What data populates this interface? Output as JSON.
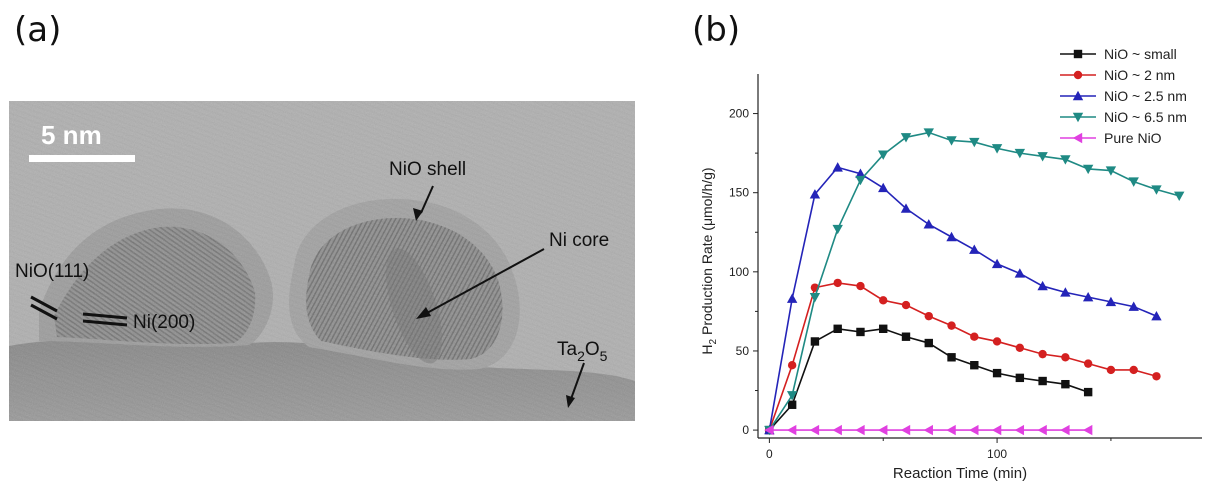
{
  "panel_a": {
    "label": "(a)",
    "scale_bar": "5 nm",
    "annotations": {
      "nio_shell": "NiO shell",
      "ni_core": "Ni core",
      "nio_111": "NiO(111)",
      "ni_200": "Ni(200)",
      "ta2o5_base": "Ta",
      "ta2o5_sub1": "2",
      "ta2o5_mid": "O",
      "ta2o5_sub2": "5"
    }
  },
  "panel_b": {
    "label": "(b)"
  },
  "chart_data": {
    "type": "line",
    "xlabel": "Reaction Time (min)",
    "ylabel_prefix": "H",
    "ylabel_sub": "2",
    "ylabel_rest": " Production Rate (μmol/h/g)",
    "xlim": [
      -5,
      190
    ],
    "ylim": [
      -5,
      225
    ],
    "xticks": [
      0,
      100
    ],
    "yticks": [
      0,
      50,
      100,
      150,
      200
    ],
    "legend_position": "top-right",
    "series": [
      {
        "name": "NiO ~ small",
        "color": "#111111",
        "marker": "square",
        "x": [
          0,
          10,
          20,
          30,
          40,
          50,
          60,
          70,
          80,
          90,
          100,
          110,
          120,
          130,
          140
        ],
        "y": [
          0,
          16,
          56,
          64,
          62,
          64,
          59,
          55,
          46,
          41,
          36,
          33,
          31,
          29,
          24
        ]
      },
      {
        "name": "NiO ~ 2 nm",
        "color": "#d42020",
        "marker": "circle",
        "x": [
          0,
          10,
          20,
          30,
          40,
          50,
          60,
          70,
          80,
          90,
          100,
          110,
          120,
          130,
          140,
          150,
          160,
          170
        ],
        "y": [
          0,
          41,
          90,
          93,
          91,
          82,
          79,
          72,
          66,
          59,
          56,
          52,
          48,
          46,
          42,
          38,
          38,
          34
        ]
      },
      {
        "name": "NiO ~ 2.5 nm",
        "color": "#2424b8",
        "marker": "triangle-up",
        "x": [
          0,
          10,
          20,
          30,
          40,
          50,
          60,
          70,
          80,
          90,
          100,
          110,
          120,
          130,
          140,
          150,
          160,
          170
        ],
        "y": [
          0,
          83,
          149,
          166,
          162,
          153,
          140,
          130,
          122,
          114,
          105,
          99,
          91,
          87,
          84,
          81,
          78,
          72
        ]
      },
      {
        "name": "NiO ~ 6.5 nm",
        "color": "#1f8a84",
        "marker": "triangle-down",
        "x": [
          0,
          10,
          20,
          30,
          40,
          50,
          60,
          70,
          80,
          90,
          100,
          110,
          120,
          130,
          140,
          150,
          160,
          170,
          180
        ],
        "y": [
          0,
          22,
          84,
          127,
          158,
          174,
          185,
          188,
          183,
          182,
          178,
          175,
          173,
          171,
          165,
          164,
          157,
          152,
          148
        ]
      },
      {
        "name": "Pure NiO",
        "color": "#e040e0",
        "marker": "triangle-left",
        "x": [
          0,
          10,
          20,
          30,
          40,
          50,
          60,
          70,
          80,
          90,
          100,
          110,
          120,
          130,
          140
        ],
        "y": [
          0,
          0,
          0,
          0,
          0,
          0,
          0,
          0,
          0,
          0,
          0,
          0,
          0,
          0,
          0
        ]
      }
    ]
  }
}
